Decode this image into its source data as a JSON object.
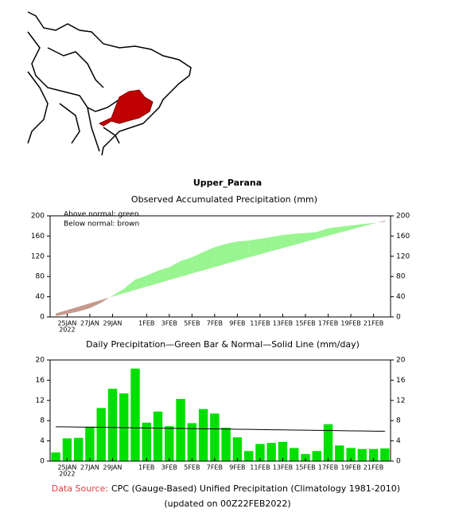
{
  "chart_data": [
    {
      "type": "area_difference",
      "title": "Upper_Parana",
      "subtitle": "Observed Accumulated Precipitation (mm)",
      "legend": [
        "Above normal: green",
        "Below normal: brown"
      ],
      "categories": [
        null,
        "25JAN",
        null,
        "27JAN",
        null,
        "29JAN",
        null,
        null,
        "1FEB",
        null,
        "3FEB",
        null,
        "5FEB",
        null,
        "7FEB",
        null,
        "9FEB",
        null,
        "11FEB",
        null,
        "13FEB",
        null,
        "15FEB",
        null,
        "17FEB",
        null,
        "19FEB",
        null,
        "21FEB",
        null
      ],
      "year_label": "2022",
      "series": [
        {
          "name": "Observed",
          "values": [
            1.7,
            6.2,
            10.8,
            17.6,
            28.1,
            42.4,
            55.8,
            74.1,
            81.7,
            91.5,
            98.4,
            110.7,
            118.2,
            128.5,
            137.9,
            144.5,
            149.2,
            151.2,
            154.6,
            158.2,
            162.0,
            164.6,
            166.0,
            168.0,
            175.3,
            178.4,
            181.0,
            183.4,
            185.8,
            188.3
          ]
        },
        {
          "name": "Normal",
          "values": [
            6.8,
            13.6,
            20.3,
            27.0,
            33.7,
            40.3,
            46.9,
            53.5,
            60.1,
            66.6,
            73.1,
            79.6,
            86.0,
            92.4,
            98.7,
            105.1,
            111.4,
            117.7,
            123.9,
            130.1,
            136.3,
            142.4,
            148.6,
            154.6,
            160.7,
            166.7,
            172.7,
            178.7,
            184.6,
            190.5
          ]
        }
      ],
      "above_color": "#98f590",
      "below_color": "#c4998c",
      "ylim": [
        0,
        200
      ],
      "yticks": [
        0,
        40,
        80,
        120,
        160,
        200
      ]
    },
    {
      "type": "bar_line",
      "title": "Daily Precipitation—Green Bar & Normal—Solid Line (mm/day)",
      "categories": [
        null,
        "25JAN",
        null,
        "27JAN",
        null,
        "29JAN",
        null,
        null,
        "1FEB",
        null,
        "3FEB",
        null,
        "5FEB",
        null,
        "7FEB",
        null,
        "9FEB",
        null,
        "11FEB",
        null,
        "13FEB",
        null,
        "15FEB",
        null,
        "17FEB",
        null,
        "19FEB",
        null,
        "21FEB",
        null
      ],
      "year_label": "2022",
      "series": [
        {
          "name": "Daily Precipitation",
          "color": "#00e000",
          "values": [
            1.7,
            4.5,
            4.6,
            6.8,
            10.5,
            14.3,
            13.4,
            18.3,
            7.6,
            9.8,
            6.9,
            12.3,
            7.5,
            10.3,
            9.4,
            6.6,
            4.7,
            2.0,
            3.4,
            3.6,
            3.8,
            2.6,
            1.4,
            2.0,
            7.3,
            3.1,
            2.6,
            2.4,
            2.4,
            2.5
          ]
        },
        {
          "name": "Normal",
          "color": "#000000",
          "values": [
            6.8,
            6.77,
            6.74,
            6.71,
            6.68,
            6.65,
            6.61,
            6.58,
            6.55,
            6.52,
            6.49,
            6.46,
            6.43,
            6.4,
            6.37,
            6.34,
            6.3,
            6.27,
            6.24,
            6.21,
            6.18,
            6.15,
            6.12,
            6.09,
            6.06,
            6.03,
            5.99,
            5.96,
            5.93,
            5.9
          ]
        }
      ],
      "ylim": [
        0,
        20
      ],
      "yticks": [
        0,
        4,
        8,
        12,
        16,
        20
      ]
    }
  ],
  "footer": {
    "source_label": "Data Source:",
    "source": "CPC (Gauge-Based) Unified Precipitation (Climatology 1981-2010)",
    "updated": "(updated on 00Z22FEB2022)"
  }
}
